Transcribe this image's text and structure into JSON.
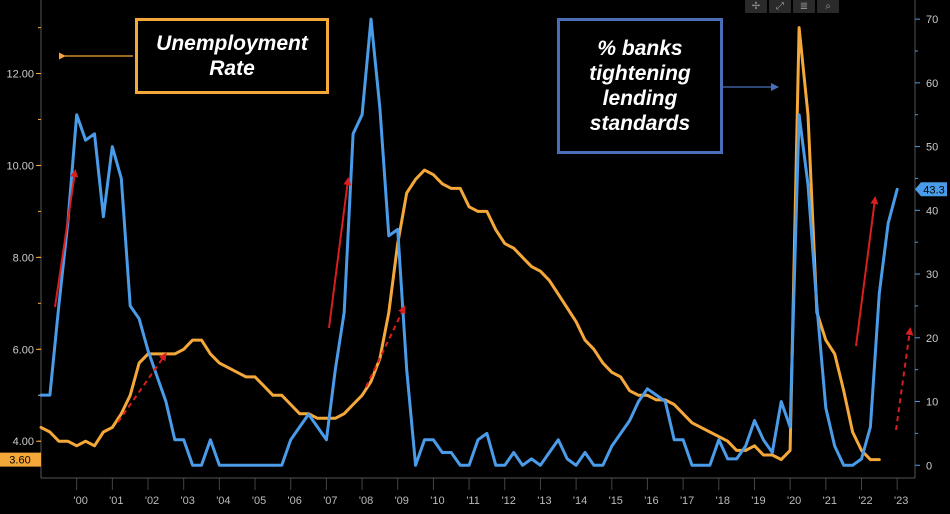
{
  "toolbar": {
    "icons": [
      "move-icon",
      "zoom-icon",
      "list-icon",
      "search-icon"
    ],
    "glyphs": [
      "✢",
      "⤢",
      "≣",
      "⌕"
    ]
  },
  "annotations": {
    "unemployment_title": [
      "Unemployment",
      "Rate"
    ],
    "lending_title": [
      "% banks",
      "tightening",
      "lending",
      "standards"
    ]
  },
  "chart_data": {
    "type": "line",
    "x_range": [
      1999.0,
      2023.5
    ],
    "x_ticks": [
      {
        "x": 2000,
        "label": "'00"
      },
      {
        "x": 2001,
        "label": "'01"
      },
      {
        "x": 2002,
        "label": "'02"
      },
      {
        "x": 2003,
        "label": "'03"
      },
      {
        "x": 2004,
        "label": "'04"
      },
      {
        "x": 2005,
        "label": "'05"
      },
      {
        "x": 2006,
        "label": "'06"
      },
      {
        "x": 2007,
        "label": "'07"
      },
      {
        "x": 2008,
        "label": "'08"
      },
      {
        "x": 2009,
        "label": "'09"
      },
      {
        "x": 2010,
        "label": "'10"
      },
      {
        "x": 2011,
        "label": "'11"
      },
      {
        "x": 2012,
        "label": "'12"
      },
      {
        "x": 2013,
        "label": "'13"
      },
      {
        "x": 2014,
        "label": "'14"
      },
      {
        "x": 2015,
        "label": "'15"
      },
      {
        "x": 2016,
        "label": "'16"
      },
      {
        "x": 2017,
        "label": "'17"
      },
      {
        "x": 2018,
        "label": "'18"
      },
      {
        "x": 2019,
        "label": "'19"
      },
      {
        "x": 2020,
        "label": "'20"
      },
      {
        "x": 2021,
        "label": "'21"
      },
      {
        "x": 2022,
        "label": "'22"
      },
      {
        "x": 2023,
        "label": "'23"
      }
    ],
    "left_axis": {
      "range": [
        3.2,
        13.6
      ],
      "ticks": [
        4.0,
        6.0,
        8.0,
        10.0,
        12.0
      ],
      "tick_labels": [
        "4.00",
        "6.00",
        "8.00",
        "10.00",
        "12.00"
      ],
      "color": "#f5a83a"
    },
    "right_axis": {
      "range": [
        -2,
        73
      ],
      "ticks": [
        0,
        10,
        20,
        30,
        40,
        50,
        60,
        70
      ],
      "tick_labels": [
        "0",
        "10",
        "20",
        "30",
        "40",
        "50",
        "60",
        "70"
      ],
      "color": "#4a9be8"
    },
    "series": [
      {
        "color": "#f5a83a",
        "axis": "left",
        "last_value_label": "3.60",
        "x": [
          1999.0,
          1999.25,
          1999.5,
          1999.75,
          2000.0,
          2000.25,
          2000.5,
          2000.75,
          2001.0,
          2001.25,
          2001.5,
          2001.75,
          2002.0,
          2002.25,
          2002.5,
          2002.75,
          2003.0,
          2003.25,
          2003.5,
          2003.75,
          2004.0,
          2004.25,
          2004.5,
          2004.75,
          2005.0,
          2005.25,
          2005.5,
          2005.75,
          2006.0,
          2006.25,
          2006.5,
          2006.75,
          2007.0,
          2007.25,
          2007.5,
          2007.75,
          2008.0,
          2008.25,
          2008.5,
          2008.75,
          2009.0,
          2009.25,
          2009.5,
          2009.75,
          2010.0,
          2010.25,
          2010.5,
          2010.75,
          2011.0,
          2011.25,
          2011.5,
          2011.75,
          2012.0,
          2012.25,
          2012.5,
          2012.75,
          2013.0,
          2013.25,
          2013.5,
          2013.75,
          2014.0,
          2014.25,
          2014.5,
          2014.75,
          2015.0,
          2015.25,
          2015.5,
          2015.75,
          2016.0,
          2016.25,
          2016.5,
          2016.75,
          2017.0,
          2017.25,
          2017.5,
          2017.75,
          2018.0,
          2018.25,
          2018.5,
          2018.75,
          2019.0,
          2019.25,
          2019.5,
          2019.75,
          2020.0,
          2020.25,
          2020.5,
          2020.75,
          2021.0,
          2021.25,
          2021.5,
          2021.75,
          2022.0,
          2022.25,
          2022.5
        ],
        "values": [
          4.3,
          4.2,
          4.0,
          4.0,
          3.9,
          4.0,
          3.9,
          4.2,
          4.3,
          4.6,
          5.0,
          5.7,
          5.9,
          5.9,
          5.9,
          5.9,
          6.0,
          6.2,
          6.2,
          5.9,
          5.7,
          5.6,
          5.5,
          5.4,
          5.4,
          5.2,
          5.0,
          5.0,
          4.8,
          4.6,
          4.6,
          4.5,
          4.5,
          4.5,
          4.6,
          4.8,
          5.0,
          5.3,
          5.8,
          6.8,
          8.3,
          9.4,
          9.7,
          9.9,
          9.8,
          9.6,
          9.5,
          9.5,
          9.1,
          9.0,
          9.0,
          8.6,
          8.3,
          8.2,
          8.0,
          7.8,
          7.7,
          7.5,
          7.2,
          6.9,
          6.6,
          6.2,
          6.0,
          5.7,
          5.5,
          5.4,
          5.1,
          5.0,
          5.0,
          4.9,
          4.9,
          4.8,
          4.6,
          4.4,
          4.3,
          4.2,
          4.1,
          4.0,
          3.8,
          3.8,
          3.9,
          3.7,
          3.7,
          3.6,
          3.8,
          13.0,
          11.1,
          6.8,
          6.2,
          5.9,
          5.1,
          4.2,
          3.8,
          3.6,
          3.6
        ]
      },
      {
        "color": "#4a9be8",
        "axis": "right",
        "last_value_label": "43.3",
        "x": [
          1999.0,
          1999.25,
          1999.5,
          1999.75,
          2000.0,
          2000.25,
          2000.5,
          2000.75,
          2001.0,
          2001.25,
          2001.5,
          2001.75,
          2002.0,
          2002.25,
          2002.5,
          2002.75,
          2003.0,
          2003.25,
          2003.5,
          2003.75,
          2004.0,
          2004.25,
          2004.5,
          2004.75,
          2005.0,
          2005.25,
          2005.5,
          2005.75,
          2006.0,
          2006.25,
          2006.5,
          2006.75,
          2007.0,
          2007.25,
          2007.5,
          2007.75,
          2008.0,
          2008.25,
          2008.5,
          2008.75,
          2009.0,
          2009.25,
          2009.5,
          2009.75,
          2010.0,
          2010.25,
          2010.5,
          2010.75,
          2011.0,
          2011.25,
          2011.5,
          2011.75,
          2012.0,
          2012.25,
          2012.5,
          2012.75,
          2013.0,
          2013.25,
          2013.5,
          2013.75,
          2014.0,
          2014.25,
          2014.5,
          2014.75,
          2015.0,
          2015.25,
          2015.5,
          2015.75,
          2016.0,
          2016.25,
          2016.5,
          2016.75,
          2017.0,
          2017.25,
          2017.5,
          2017.75,
          2018.0,
          2018.25,
          2018.5,
          2018.75,
          2019.0,
          2019.25,
          2019.5,
          2019.75,
          2020.0,
          2020.25,
          2020.5,
          2020.75,
          2021.0,
          2021.25,
          2021.5,
          2021.75,
          2022.0,
          2022.25,
          2022.5,
          2022.75,
          2023.0
        ],
        "values": [
          11,
          11,
          25,
          38,
          55,
          51,
          52,
          39,
          50,
          45,
          25,
          23,
          18,
          14,
          10,
          4,
          4,
          0,
          0,
          4,
          0,
          0,
          0,
          0,
          0,
          0,
          0,
          0,
          4,
          6,
          8,
          6,
          4,
          15,
          24,
          52,
          55,
          70,
          56,
          36,
          37,
          15,
          0,
          4,
          4,
          2,
          2,
          0,
          0,
          4,
          5,
          0,
          0,
          2,
          0,
          1,
          0,
          2,
          4,
          1,
          0,
          2,
          0,
          0,
          3,
          5,
          7,
          10,
          12,
          11,
          10,
          4,
          4,
          0,
          0,
          0,
          4,
          1,
          1,
          3,
          7,
          4,
          2,
          10,
          6,
          55,
          44,
          25,
          9,
          3,
          0,
          0,
          1,
          6,
          27,
          38,
          43.3
        ]
      }
    ]
  }
}
